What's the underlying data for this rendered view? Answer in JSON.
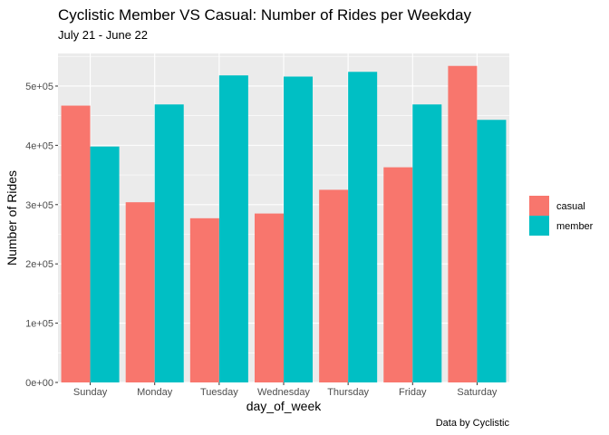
{
  "chart_data": {
    "type": "bar",
    "title": "Cyclistic Member VS Casual: Number of Rides per Weekday",
    "subtitle": "July 21 - June 22",
    "xlabel": "day_of_week",
    "ylabel": "Number of Rides",
    "caption": "Data by Cyclistic",
    "categories": [
      "Sunday",
      "Monday",
      "Tuesday",
      "Wednesday",
      "Thursday",
      "Friday",
      "Saturday"
    ],
    "series": [
      {
        "name": "casual",
        "color": "#F8766D",
        "values": [
          467000,
          304000,
          277000,
          285000,
          325000,
          363000,
          534000
        ]
      },
      {
        "name": "member",
        "color": "#00BFC4",
        "values": [
          398000,
          469000,
          518000,
          516000,
          524000,
          469000,
          443000
        ]
      }
    ],
    "ylim": [
      0,
      555000
    ],
    "yticks": [
      0,
      100000,
      200000,
      300000,
      400000,
      500000
    ],
    "ytick_labels": [
      "0e+00",
      "1e+05",
      "2e+05",
      "3e+05",
      "4e+05",
      "5e+05"
    ],
    "grid": true,
    "legend_position": "right",
    "panel_background": "#EBEBEB"
  }
}
